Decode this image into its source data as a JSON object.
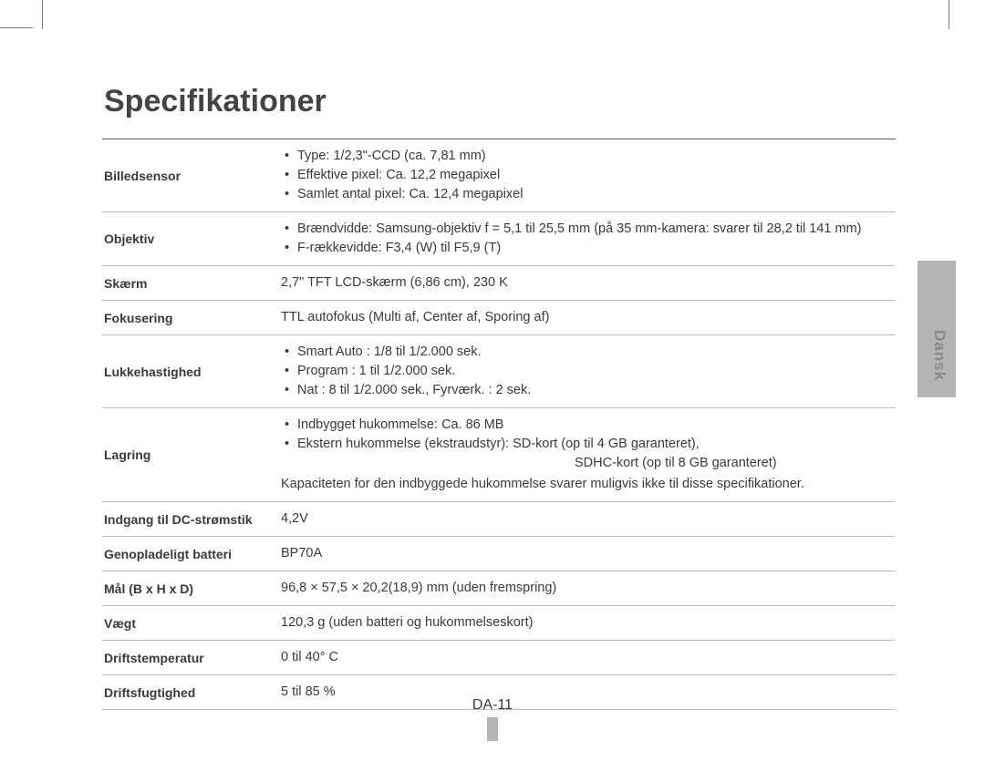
{
  "title": "Specifikationer",
  "language_tab": "Dansk",
  "page_number": "DA-11",
  "rows": {
    "image_sensor": {
      "label": "Billedsensor",
      "items": [
        "Type: 1/2,3\"-CCD (ca. 7,81 mm)",
        "Effektive pixel: Ca. 12,2 megapixel",
        "Samlet antal pixel: Ca. 12,4 megapixel"
      ]
    },
    "lens": {
      "label": "Objektiv",
      "items": [
        "Brændvidde: Samsung-objektiv f = 5,1 til 25,5 mm (på 35 mm-kamera: svarer til 28,2 til 141 mm)",
        "F-rækkevidde: F3,4 (W) til F5,9 (T)"
      ]
    },
    "display": {
      "label": "Skærm",
      "text": "2,7\" TFT LCD-skærm (6,86 cm), 230 K"
    },
    "focus": {
      "label": "Fokusering",
      "text": "TTL autofokus (Multi af, Center af, Sporing af)"
    },
    "shutter": {
      "label": "Lukkehastighed",
      "items": [
        "Smart Auto : 1/8 til 1/2.000 sek.",
        "Program : 1 til 1/2.000 sek.",
        "Nat : 8 til 1/2.000 sek., Fyrværk. : 2 sek."
      ]
    },
    "storage": {
      "label": "Lagring",
      "items": [
        "Indbygget hukommelse: Ca. 86 MB",
        "Ekstern hukommelse (ekstraudstyr): SD-kort (op til 4 GB garanteret),"
      ],
      "subline": "SDHC-kort (op til 8 GB garanteret)",
      "note": "Kapaciteten for den indbyggede hukommelse svarer muligvis ikke til disse specifikationer."
    },
    "dc_input": {
      "label": "Indgang til DC-strømstik",
      "text": "4,2V"
    },
    "battery": {
      "label": "Genopladeligt batteri",
      "text": "BP70A"
    },
    "dimensions": {
      "label": "Mål (B x H x D)",
      "text": "96,8 × 57,5 × 20,2(18,9) mm (uden fremspring)"
    },
    "weight": {
      "label": "Vægt",
      "text": "120,3 g (uden batteri og hukommelseskort)"
    },
    "op_temp": {
      "label": "Driftstemperatur",
      "text": "0 til 40° C"
    },
    "op_humidity": {
      "label": "Driftsfugtighed",
      "text": "5 til 85 %"
    }
  }
}
